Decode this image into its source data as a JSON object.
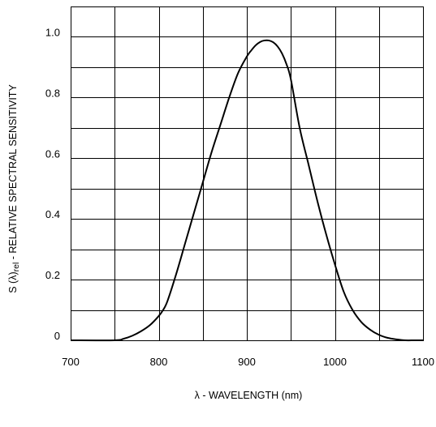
{
  "chart_data": {
    "type": "line",
    "title": "",
    "xlabel": "λ - WAVELENGTH (nm)",
    "ylabel_prefix": "S (λ)",
    "ylabel_sub": "rel",
    "ylabel_suffix": " -  RELATIVE SPECTRAL SENSITIVITY",
    "xlim": [
      700,
      1100
    ],
    "ylim": [
      0,
      1.1
    ],
    "grid": true,
    "x_ticks": [
      700,
      800,
      900,
      1000,
      1100
    ],
    "x_tick_labels": [
      "700",
      "800",
      "900",
      "1000",
      "1100"
    ],
    "x_minor_step": 50,
    "y_ticks": [
      0,
      0.2,
      0.4,
      0.6,
      0.8,
      1.0
    ],
    "y_tick_labels": [
      "0",
      "0.2",
      "0.4",
      "0.6",
      "0.8",
      "1.0"
    ],
    "y_minor_step": 0.1,
    "series": [
      {
        "x": [
          700,
          750,
          760,
          770,
          780,
          790,
          800,
          805,
          810,
          820,
          830,
          840,
          850,
          860,
          870,
          880,
          890,
          900,
          905,
          910,
          915,
          920,
          925,
          930,
          935,
          940,
          945,
          950,
          960,
          970,
          980,
          990,
          1000,
          1010,
          1020,
          1030,
          1040,
          1050,
          1060,
          1070,
          1080,
          1090,
          1100
        ],
        "y": [
          0,
          0,
          0.005,
          0.015,
          0.03,
          0.05,
          0.08,
          0.1,
          0.13,
          0.22,
          0.32,
          0.42,
          0.52,
          0.62,
          0.71,
          0.8,
          0.88,
          0.935,
          0.955,
          0.972,
          0.983,
          0.988,
          0.988,
          0.982,
          0.968,
          0.945,
          0.91,
          0.86,
          0.7,
          0.58,
          0.46,
          0.35,
          0.25,
          0.16,
          0.1,
          0.06,
          0.035,
          0.018,
          0.008,
          0.003,
          0,
          0,
          0
        ]
      }
    ]
  }
}
